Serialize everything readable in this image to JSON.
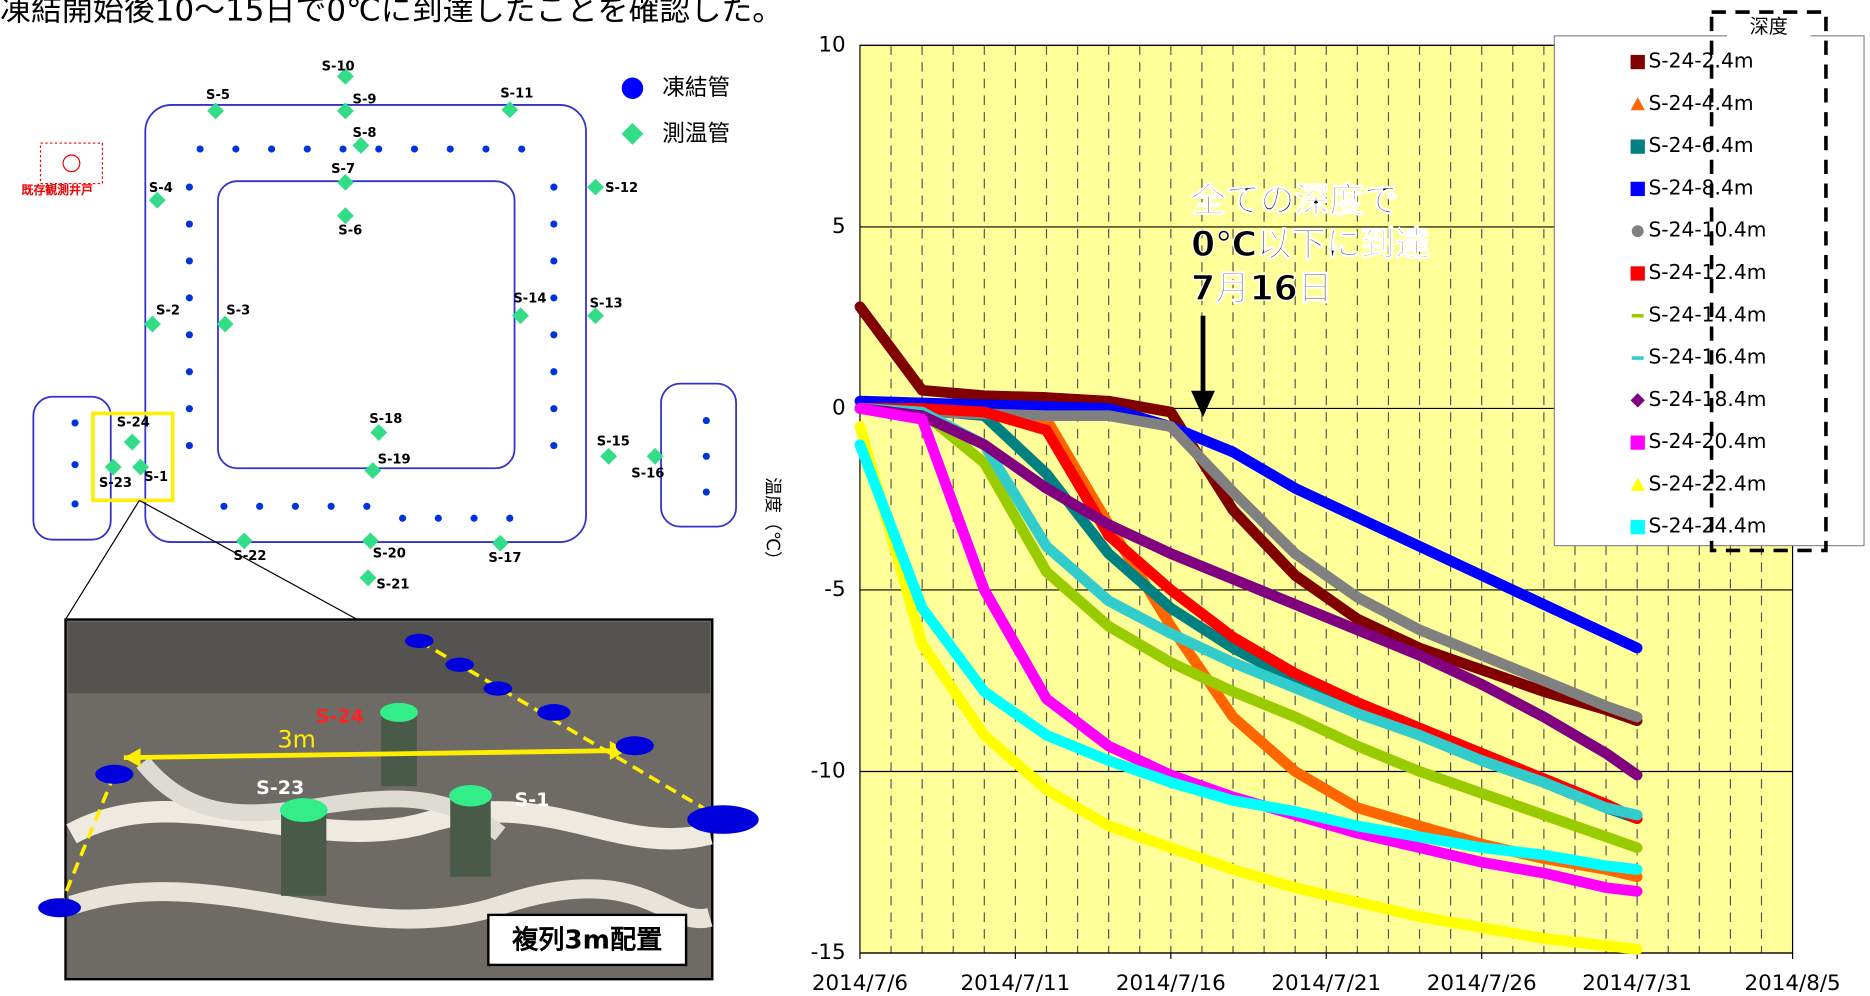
{
  "header": {
    "text": "凍結開始後10～15日で0℃に到達したことを確認した。"
  },
  "diagram": {
    "existing_well": "既存観測井戸",
    "legend": {
      "freeze_pipe": "凍結管",
      "temp_pipe": "測温管"
    },
    "sensors": [
      "S-1",
      "S-2",
      "S-3",
      "S-4",
      "S-5",
      "S-6",
      "S-7",
      "S-8",
      "S-9",
      "S-10",
      "S-11",
      "S-12",
      "S-13",
      "S-14",
      "S-15",
      "S-16",
      "S-17",
      "S-18",
      "S-19",
      "S-20",
      "S-21",
      "S-22",
      "S-23",
      "S-24"
    ],
    "photo": {
      "distance": "3m",
      "labels": [
        "S-24",
        "S-23",
        "S-1"
      ],
      "caption": "複列3m配置"
    }
  },
  "chart_data": {
    "type": "line",
    "y_label": "温度（℃）",
    "legend_title": "深度",
    "annotation": [
      "全ての深度で",
      "0℃以下に到達",
      "7月16日"
    ],
    "x": [
      "2014/7/6",
      "2014/7/8",
      "2014/7/10",
      "2014/7/12",
      "2014/7/14",
      "2014/7/16",
      "2014/7/18",
      "2014/7/20",
      "2014/7/22",
      "2014/7/24",
      "2014/7/26",
      "2014/7/28",
      "2014/7/30",
      "2014/7/31"
    ],
    "xlim": [
      "2014/7/6",
      "2014/8/5"
    ],
    "xticks": [
      "2014/7/6",
      "2014/7/11",
      "2014/7/16",
      "2014/7/21",
      "2014/7/26",
      "2014/7/31",
      "2014/8/5"
    ],
    "ylim": [
      -15,
      10
    ],
    "yticks": [
      -15,
      -10,
      -5,
      0,
      5,
      10
    ],
    "grid": true,
    "background": "#ffff99",
    "series": [
      {
        "name": "S-24-2.4m",
        "color": "#800000",
        "marker": "square",
        "values": [
          2.8,
          0.5,
          0.35,
          0.3,
          0.2,
          -0.1,
          -2.8,
          -4.6,
          -5.8,
          -6.6,
          -7.2,
          -7.8,
          -8.3,
          -8.6
        ]
      },
      {
        "name": "S-24-4.4m",
        "color": "#ff6600",
        "marker": "triangle",
        "values": [
          0,
          -0.05,
          -0.1,
          -0.3,
          -3.2,
          -6,
          -8.5,
          -10,
          -11,
          -11.5,
          -12,
          -12.4,
          -12.7,
          -12.9
        ]
      },
      {
        "name": "S-24-6.4m",
        "color": "#008080",
        "marker": "square",
        "values": [
          0,
          -0.05,
          -0.2,
          -1.8,
          -4,
          -5.5,
          -6.6,
          -7.5,
          -8.3,
          -9,
          -9.7,
          -10.3,
          -11,
          -11.3
        ]
      },
      {
        "name": "S-24-8.4m",
        "color": "#0000ff",
        "marker": "square",
        "values": [
          0.2,
          0.15,
          0.1,
          0.05,
          0,
          -0.5,
          -1.2,
          -2.2,
          -3,
          -3.8,
          -4.6,
          -5.4,
          -6.2,
          -6.6
        ]
      },
      {
        "name": "S-24-10.4m",
        "color": "#808080",
        "marker": "circle",
        "values": [
          0,
          -0.1,
          -0.15,
          -0.2,
          -0.2,
          -0.5,
          -2.3,
          -4,
          -5.2,
          -6.1,
          -6.8,
          -7.5,
          -8.2,
          -8.5
        ]
      },
      {
        "name": "S-24-12.4m",
        "color": "#ff0000",
        "marker": "square",
        "values": [
          0,
          0,
          -0.1,
          -0.6,
          -3.5,
          -5,
          -6.3,
          -7.3,
          -8.1,
          -8.8,
          -9.5,
          -10.2,
          -10.9,
          -11.3
        ]
      },
      {
        "name": "S-24-14.4m",
        "color": "#99cc00",
        "marker": "dash",
        "values": [
          0,
          -0.1,
          -1.5,
          -4.5,
          -6,
          -7,
          -7.8,
          -8.5,
          -9.3,
          -10,
          -10.6,
          -11.2,
          -11.8,
          -12.1
        ]
      },
      {
        "name": "S-24-16.4m",
        "color": "#33cccc",
        "marker": "dash",
        "values": [
          0,
          -0.1,
          -1,
          -3.8,
          -5.3,
          -6.2,
          -7,
          -7.7,
          -8.4,
          -9,
          -9.7,
          -10.3,
          -11,
          -11.2
        ]
      },
      {
        "name": "S-24-18.4m",
        "color": "#800080",
        "marker": "diamond",
        "values": [
          0,
          -0.2,
          -1,
          -2.2,
          -3.2,
          -4,
          -4.7,
          -5.4,
          -6.1,
          -6.8,
          -7.6,
          -8.5,
          -9.5,
          -10.1
        ]
      },
      {
        "name": "S-24-20.4m",
        "color": "#ff00ff",
        "marker": "square",
        "values": [
          0,
          -0.3,
          -5,
          -8,
          -9.3,
          -10.1,
          -10.7,
          -11.2,
          -11.7,
          -12.1,
          -12.5,
          -12.8,
          -13.2,
          -13.3
        ]
      },
      {
        "name": "S-24-22.4m",
        "color": "#ffff00",
        "marker": "triangle",
        "values": [
          -0.5,
          -6.5,
          -9,
          -10.5,
          -11.5,
          -12.1,
          -12.7,
          -13.2,
          -13.6,
          -14,
          -14.3,
          -14.6,
          -14.8,
          -14.9
        ]
      },
      {
        "name": "S-24-24.4m",
        "color": "#00ffff",
        "marker": "square",
        "values": [
          -1,
          -5.5,
          -7.8,
          -9,
          -9.7,
          -10.3,
          -10.8,
          -11.1,
          -11.5,
          -11.8,
          -12.1,
          -12.3,
          -12.6,
          -12.7
        ]
      }
    ]
  }
}
